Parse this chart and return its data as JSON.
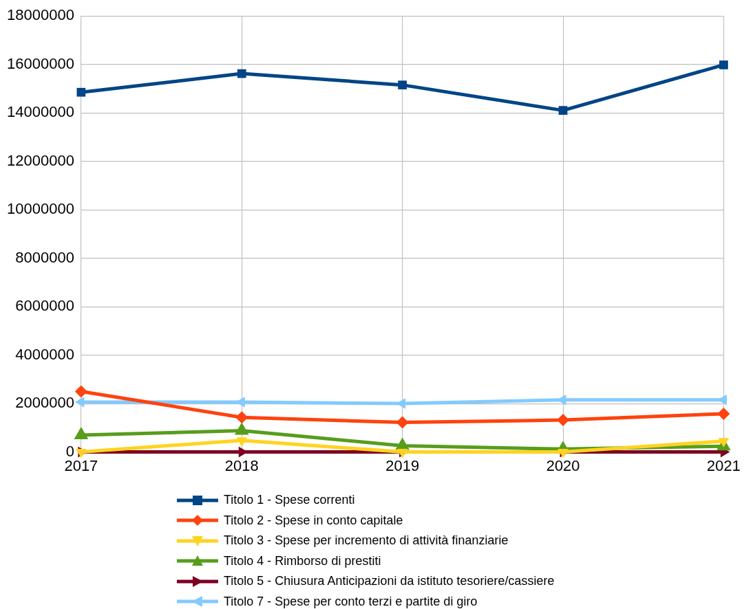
{
  "chart_data": {
    "type": "line",
    "categories": [
      "2017",
      "2018",
      "2019",
      "2020",
      "2021"
    ],
    "ylim": [
      0,
      18000000
    ],
    "yticks": [
      0,
      2000000,
      4000000,
      6000000,
      8000000,
      10000000,
      12000000,
      14000000,
      16000000,
      18000000
    ],
    "grid": true,
    "legend": "bottom",
    "line_style": "solid",
    "series": [
      {
        "name": "Titolo 1 - Spese correnti",
        "color": "#004586",
        "marker": "square",
        "values": [
          14850000,
          15620000,
          15150000,
          14100000,
          15980000
        ]
      },
      {
        "name": "Titolo 2 - Spese in conto capitale",
        "color": "#ff420e",
        "marker": "diamond",
        "values": [
          2500000,
          1430000,
          1220000,
          1320000,
          1580000
        ]
      },
      {
        "name": "Titolo 3 - Spese per incremento di attività finanziarie",
        "color": "#ffd320",
        "marker": "triangle-down",
        "values": [
          0,
          480000,
          0,
          0,
          450000
        ]
      },
      {
        "name": "Titolo 4 - Rimborso di prestiti",
        "color": "#579d1c",
        "marker": "triangle",
        "values": [
          700000,
          880000,
          260000,
          120000,
          240000
        ]
      },
      {
        "name": "Titolo 5 - Chiusura Anticipazioni da istituto tesoriere/cassiere",
        "color": "#7e0021",
        "marker": "triangle-right",
        "values": [
          0,
          0,
          0,
          0,
          0
        ]
      },
      {
        "name": "Titolo 7 - Spese per conto terzi e partite di giro",
        "color": "#83caff",
        "marker": "triangle-left",
        "values": [
          2060000,
          2060000,
          2000000,
          2150000,
          2150000
        ]
      }
    ]
  }
}
